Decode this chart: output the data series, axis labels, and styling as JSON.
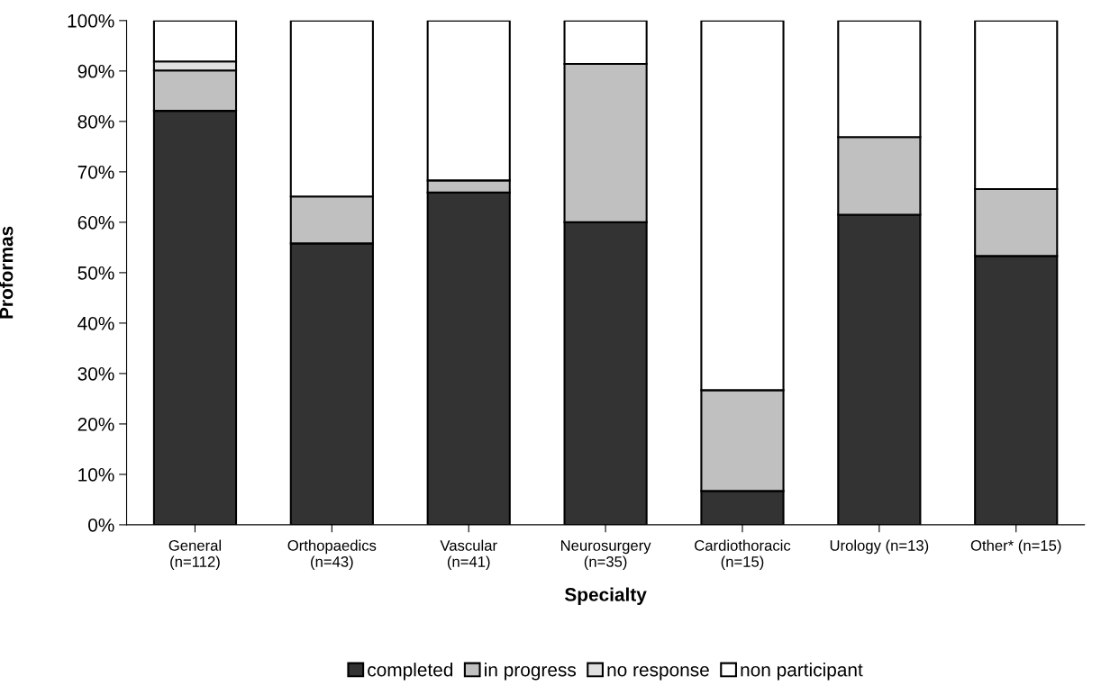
{
  "chart_data": {
    "type": "bar",
    "stacked": true,
    "xlabel": "Specialty",
    "ylabel": "Proformas",
    "categories": [
      "General\n(n=112)",
      "Orthopaedics\n(n=43)",
      "Vascular\n(n=41)",
      "Neurosurgery\n(n=35)",
      "Cardiothoracic\n(n=15)",
      "Urology (n=13)",
      "Other* (n=15)"
    ],
    "series": [
      {
        "name": "completed",
        "color": "#333333",
        "values": [
          82.1,
          55.8,
          65.9,
          60.0,
          6.7,
          61.5,
          53.3
        ]
      },
      {
        "name": "in progress",
        "color": "#c0c0c0",
        "values": [
          8.0,
          9.3,
          2.4,
          31.4,
          20.0,
          15.4,
          13.3
        ]
      },
      {
        "name": "no response",
        "color": "#e0e0e0",
        "values": [
          1.8,
          0,
          0,
          0,
          0,
          0,
          0
        ]
      },
      {
        "name": "non participant",
        "color": "#ffffff",
        "values": [
          8.1,
          34.9,
          31.7,
          8.6,
          73.3,
          23.1,
          33.4
        ]
      }
    ],
    "ylim": [
      0,
      100
    ],
    "yticks": [
      {
        "value": 0,
        "label": "0%"
      },
      {
        "value": 10,
        "label": "10%"
      },
      {
        "value": 20,
        "label": "20%"
      },
      {
        "value": 30,
        "label": "30%"
      },
      {
        "value": 40,
        "label": "40%"
      },
      {
        "value": 50,
        "label": "50%"
      },
      {
        "value": 60,
        "label": "60%"
      },
      {
        "value": 70,
        "label": "70%"
      },
      {
        "value": 80,
        "label": "80%"
      },
      {
        "value": 90,
        "label": "90%"
      },
      {
        "value": 100,
        "label": "100%"
      }
    ],
    "grid": false,
    "legend": "bottom"
  }
}
